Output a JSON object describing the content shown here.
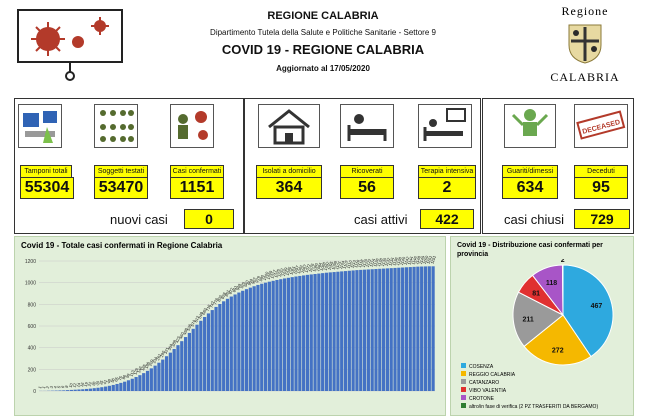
{
  "header": {
    "region": "REGIONE CALABRIA",
    "department": "Dipartimento Tutela della Salute e Politiche Sanitarie - Settore 9",
    "title": "COVID 19 - REGIONE CALABRIA",
    "updated": "Aggiornato al   17/05/2020",
    "logo_top": "Regione",
    "logo_bottom": "CALABRIA"
  },
  "stats": {
    "tamponi": {
      "label": "Tamponi totali",
      "value": "55304"
    },
    "soggetti": {
      "label": "Soggetti testati",
      "value": "53470"
    },
    "confermati": {
      "label": "Casi confermati",
      "value": "1151"
    },
    "isolati": {
      "label": "Isolati a domicilio",
      "value": "364"
    },
    "ricoverati": {
      "label": "Ricoverati",
      "value": "56"
    },
    "terapia": {
      "label": "Terapia intensiva",
      "value": "2"
    },
    "guariti": {
      "label": "Guariti/dimessi",
      "value": "634"
    },
    "deceduti": {
      "label": "Deceduti",
      "value": "95"
    }
  },
  "summary": {
    "nuovi_label": "nuovi casi",
    "nuovi_value": "0",
    "attivi_label": "casi attivi",
    "attivi_value": "422",
    "chiusi_label": "casi chiusi",
    "chiusi_value": "729"
  },
  "colors": {
    "yellow": "#ffff00",
    "bar": "#4472c4",
    "chart_bg": "#e2efda",
    "virus": "#b33a2a"
  },
  "chart_data": [
    {
      "type": "bar",
      "title": "Covid 19 - Totale casi confermati in Regione Calabria",
      "ylim": [
        0,
        1200
      ],
      "yticks": [
        0,
        200,
        400,
        600,
        800,
        1000,
        1200
      ],
      "values": [
        1,
        1,
        2,
        3,
        4,
        5,
        6,
        8,
        10,
        12,
        14,
        16,
        19,
        22,
        26,
        30,
        35,
        41,
        48,
        56,
        65,
        75,
        86,
        99,
        113,
        129,
        146,
        165,
        186,
        209,
        234,
        261,
        290,
        321,
        354,
        388,
        423,
        460,
        498,
        536,
        574,
        612,
        648,
        683,
        716,
        747,
        776,
        803,
        828,
        851,
        872,
        891,
        909,
        925,
        940,
        954,
        967,
        979,
        990,
        1000,
        1009,
        1017,
        1025,
        1032,
        1039,
        1045,
        1051,
        1057,
        1062,
        1067,
        1072,
        1076,
        1080,
        1084,
        1088,
        1092,
        1095,
        1098,
        1101,
        1104,
        1107,
        1110,
        1113,
        1116,
        1118,
        1120,
        1122,
        1124,
        1126,
        1128,
        1130,
        1132,
        1134,
        1136,
        1138,
        1140,
        1142,
        1144,
        1146,
        1148,
        1149,
        1150,
        1151,
        1151
      ],
      "grid": true
    },
    {
      "type": "pie",
      "title": "Covid 19 - Distribuzione casi confermati per provincia",
      "slices": [
        {
          "name": "COSENZA",
          "value": 467,
          "color": "#2ea9df"
        },
        {
          "name": "REGGIO CALABRIA",
          "value": 272,
          "color": "#f5b800"
        },
        {
          "name": "CATANZARO",
          "value": 211,
          "color": "#9a9a9a"
        },
        {
          "name": "VIBO VALENTIA",
          "value": 81,
          "color": "#e03030"
        },
        {
          "name": "CROTONE",
          "value": 118,
          "color": "#a855c7"
        },
        {
          "name": "altro/in fase di verifica (2 PZ TRASFERITI  DA BERGAMO)",
          "value": 2,
          "color": "#2e7d32"
        }
      ],
      "legend": "bottom-left"
    }
  ]
}
